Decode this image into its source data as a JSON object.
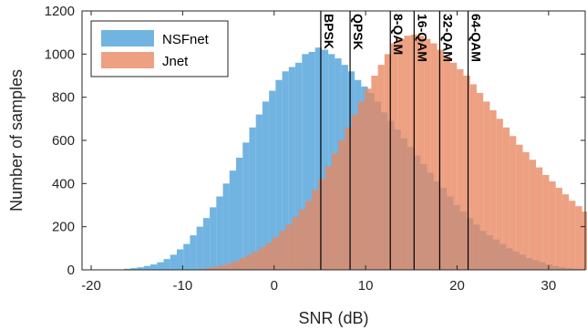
{
  "chart_data": {
    "type": "histogram",
    "title": "",
    "xlabel": "SNR (dB)",
    "ylabel": "Number of samples",
    "xlim": [
      -21,
      34
    ],
    "ylim": [
      0,
      1200
    ],
    "xticks": [
      -20,
      -10,
      0,
      10,
      20,
      30
    ],
    "yticks": [
      0,
      200,
      400,
      600,
      800,
      1000,
      1200
    ],
    "bin_width": 0.72,
    "grid": false,
    "legend_position": "top-left",
    "series": [
      {
        "name": "NSFnet",
        "color": "#4A9FD9",
        "x_start": -16.4,
        "values": [
          5,
          8,
          12,
          18,
          25,
          35,
          50,
          70,
          95,
          120,
          160,
          200,
          240,
          290,
          340,
          400,
          460,
          520,
          590,
          660,
          720,
          780,
          830,
          880,
          920,
          940,
          960,
          1000,
          1010,
          1030,
          1020,
          1000,
          980,
          950,
          920,
          880,
          850,
          820,
          780,
          730,
          690,
          650,
          610,
          570,
          530,
          490,
          450,
          410,
          380,
          340,
          300,
          270,
          240,
          210,
          180,
          160,
          140,
          120,
          100,
          85,
          70,
          55,
          45,
          35,
          25,
          18,
          12,
          8,
          5,
          3,
          2,
          1
        ]
      },
      {
        "name": "Jnet",
        "color": "#E8875F",
        "x_start": -8.1,
        "values": [
          5,
          10,
          15,
          20,
          30,
          40,
          55,
          70,
          85,
          105,
          125,
          150,
          180,
          210,
          245,
          280,
          320,
          370,
          420,
          480,
          540,
          600,
          660,
          720,
          780,
          840,
          900,
          950,
          1000,
          1050,
          1070,
          1085,
          1090,
          1085,
          1070,
          1050,
          1020,
          990,
          960,
          930,
          900,
          860,
          820,
          780,
          740,
          700,
          660,
          620,
          580,
          545,
          510,
          475,
          440,
          410,
          380,
          350,
          320,
          295,
          270,
          250,
          230,
          210,
          190,
          175,
          160,
          145,
          130,
          120,
          110,
          100,
          92,
          85,
          78,
          72,
          66,
          60,
          55,
          50,
          45,
          40,
          35,
          30,
          25,
          20,
          15
        ]
      }
    ],
    "vertical_markers": [
      {
        "x": 5.1,
        "label": "BPSK"
      },
      {
        "x": 8.3,
        "label": "QPSK"
      },
      {
        "x": 12.7,
        "label": "8-QAM"
      },
      {
        "x": 15.3,
        "label": "16-QAM"
      },
      {
        "x": 18.1,
        "label": "32-QAM"
      },
      {
        "x": 21.2,
        "label": "64-QAM"
      }
    ]
  }
}
